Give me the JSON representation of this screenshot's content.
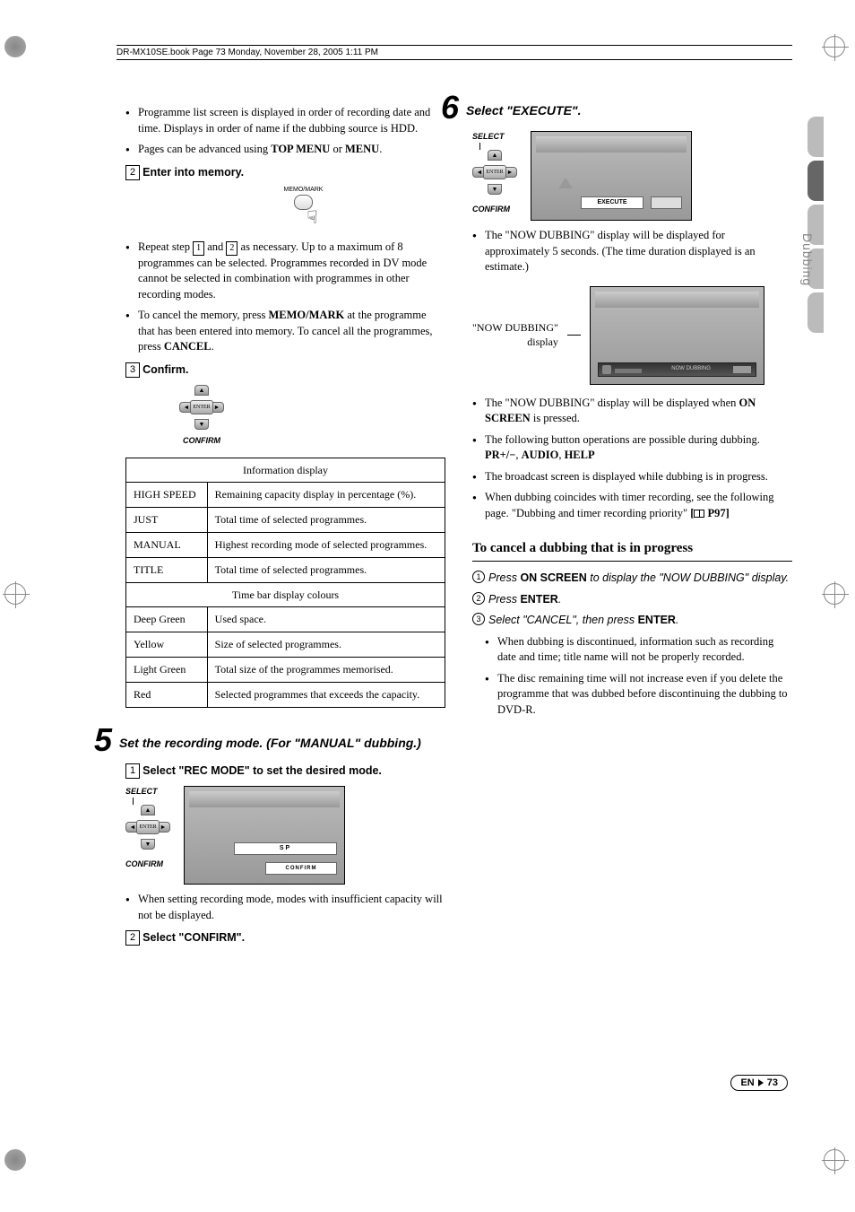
{
  "header": "DR-MX10SE.book  Page 73  Monday, November 28, 2005  1:11 PM",
  "side_tab_text": "Dubbing",
  "left": {
    "intro_bullets": [
      "Programme list screen is displayed in order of recording date and time. Displays in order of name if the dubbing source is HDD.",
      "Pages can be advanced using <b>TOP MENU</b> or <b>MENU</b>."
    ],
    "sub2_num": "2",
    "sub2_title": "Enter into memory.",
    "memo_label": "MEMO/MARK",
    "after_memo_bullets": [
      "Repeat step <box>1</box> and <box>2</box> as necessary. Up to a maximum of 8 programmes can be selected. Programmes recorded in DV mode cannot be selected in combination with programmes in other recording modes.",
      "To cancel the memory, press <b>MEMO/MARK</b> at the programme that has been entered into memory. To cancel all the programmes, press <b>CANCEL</b>."
    ],
    "sub3_num": "3",
    "sub3_title": "Confirm.",
    "confirm_label": "CONFIRM",
    "enter_label": "ENTER",
    "table": {
      "header1": "Information display",
      "rows1": [
        [
          "HIGH SPEED",
          "Remaining capacity display in percentage (%)."
        ],
        [
          "JUST",
          "Total time of selected programmes."
        ],
        [
          "MANUAL",
          "Highest recording mode of selected programmes."
        ],
        [
          "TITLE",
          "Total time of selected programmes."
        ]
      ],
      "header2": "Time bar display colours",
      "rows2": [
        [
          "Deep Green",
          "Used space."
        ],
        [
          "Yellow",
          "Size of selected programmes."
        ],
        [
          "Light Green",
          "Total size of the programmes memorised."
        ],
        [
          "Red",
          "Selected programmes that exceeds the capacity."
        ]
      ]
    },
    "step5_num": "5",
    "step5_title": "Set the recording mode. (For \"MANUAL\" dubbing.)",
    "step5_sub1_num": "1",
    "step5_sub1_title": "Select \"REC MODE\" to set the desired mode.",
    "select_label": "SELECT",
    "screen_sp": "SP",
    "screen_confirm": "CONFIRM",
    "step5_note": "When setting recording mode, modes with insufficient capacity will not be displayed.",
    "step5_sub2_num": "2",
    "step5_sub2_title": "Select \"CONFIRM\"."
  },
  "right": {
    "step6_num": "6",
    "step6_title": "Select \"EXECUTE\".",
    "select_label": "SELECT",
    "confirm_label": "CONFIRM",
    "enter_label": "ENTER",
    "execute_btn": "EXECUTE",
    "after_execute": "The \"NOW DUBBING\" display will be displayed for approximately 5 seconds. (The time duration displayed is an estimate.)",
    "nd_label1": "\"NOW DUBBING\"",
    "nd_label2": "display",
    "nd_bar_text": "NOW DUBBING",
    "bullets2": [
      "The \"NOW DUBBING\" display will be displayed when <b>ON SCREEN</b> is pressed.",
      "The following button operations are possible during dubbing.<br><b>PR+/−</b>, <b>AUDIO</b>, <b>HELP</b>",
      "The broadcast screen is displayed while dubbing is in progress.",
      "When dubbing coincides with timer recording, see the following page. \"Dubbing and timer recording priority\" <b>[<book></book> P97]</b>"
    ],
    "cancel_heading": "To cancel a dubbing that is in progress",
    "cancel_steps": [
      {
        "n": "1",
        "t": "Press <b>ON SCREEN</b> to display the \"NOW DUBBING\" display."
      },
      {
        "n": "2",
        "t": "Press <b>ENTER</b>."
      },
      {
        "n": "3",
        "t": "Select \"CANCEL\", then press <b>ENTER</b>."
      }
    ],
    "cancel_bullets": [
      "When dubbing is discontinued, information such as recording date and time; title name will not be properly recorded.",
      "The disc remaining time will not increase even if you delete the programme that was dubbed before discontinuing the dubbing to DVD-R."
    ]
  },
  "footer": {
    "lang": "EN",
    "page": "73"
  }
}
